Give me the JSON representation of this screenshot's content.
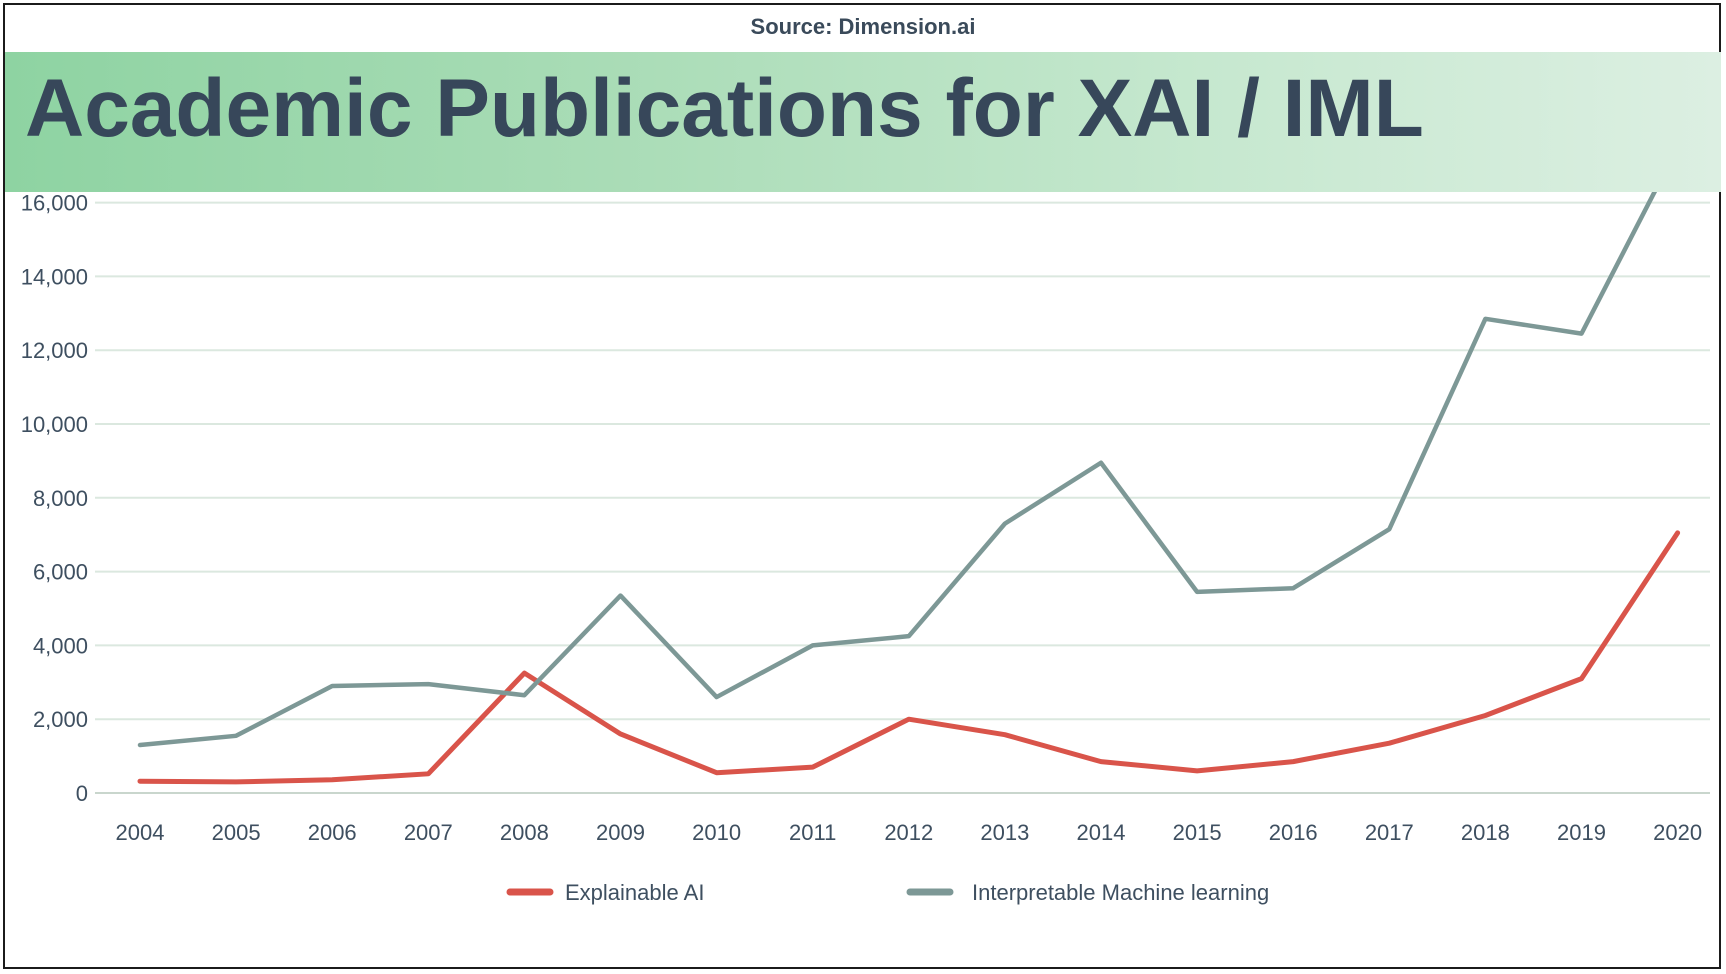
{
  "header": {
    "source": "Source: Dimension.ai",
    "title": "Academic Publications for XAI / IML"
  },
  "chart_data": {
    "type": "line",
    "title": "Academic Publications for XAI / IML",
    "xlabel": "",
    "ylabel": "",
    "ylim": [
      0,
      16000
    ],
    "grid": true,
    "legend_position": "bottom",
    "categories": [
      "2004",
      "2005",
      "2006",
      "2007",
      "2008",
      "2009",
      "2010",
      "2011",
      "2012",
      "2013",
      "2014",
      "2015",
      "2016",
      "2017",
      "2018",
      "2019",
      "2020"
    ],
    "y_ticks": [
      "0",
      "2,000",
      "4,000",
      "6,000",
      "8,000",
      "10,000",
      "12,000",
      "14,000",
      "16,000"
    ],
    "y_tick_values": [
      0,
      2000,
      4000,
      6000,
      8000,
      10000,
      12000,
      14000,
      16000
    ],
    "series": [
      {
        "name": "Explainable AI",
        "color": "#d9544a",
        "values": [
          320,
          300,
          360,
          520,
          3250,
          1600,
          550,
          700,
          2000,
          1580,
          850,
          600,
          850,
          1350,
          2100,
          3100,
          7050
        ]
      },
      {
        "name": "Interpretable Machine learning",
        "color": "#7d9896",
        "values": [
          1300,
          1550,
          2900,
          2950,
          2650,
          5350,
          2600,
          4000,
          4250,
          7300,
          8950,
          5450,
          5550,
          7150,
          12850,
          12450,
          17500
        ]
      }
    ]
  }
}
